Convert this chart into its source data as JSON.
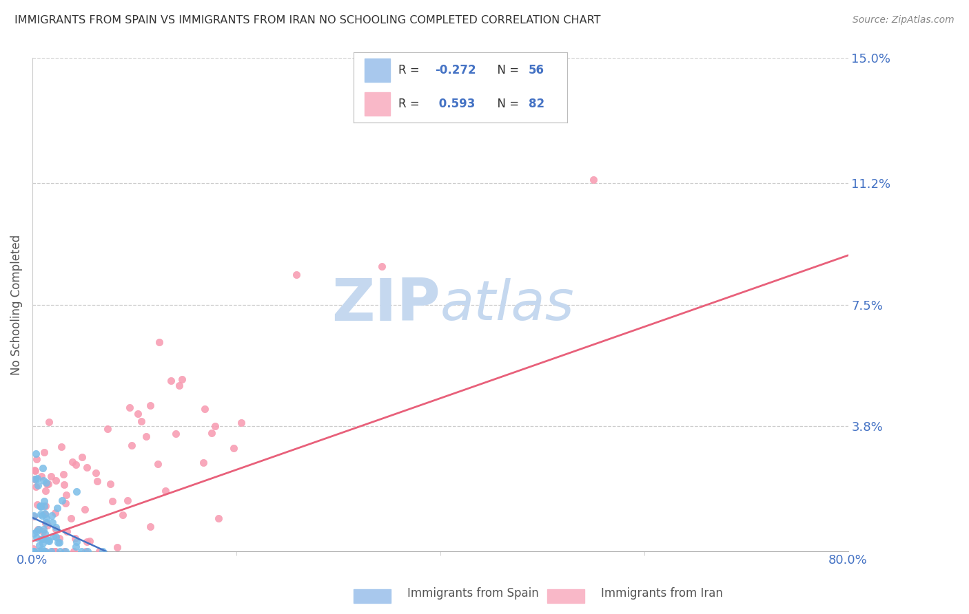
{
  "title": "IMMIGRANTS FROM SPAIN VS IMMIGRANTS FROM IRAN NO SCHOOLING COMPLETED CORRELATION CHART",
  "source": "Source: ZipAtlas.com",
  "ylabel": "No Schooling Completed",
  "xlim": [
    0.0,
    0.8
  ],
  "ylim": [
    0.0,
    0.15
  ],
  "yticks": [
    0.0,
    0.038,
    0.075,
    0.112,
    0.15
  ],
  "ytick_labels": [
    "",
    "3.8%",
    "7.5%",
    "11.2%",
    "15.0%"
  ],
  "xticks": [
    0.0,
    0.8
  ],
  "xtick_labels": [
    "0.0%",
    "80.0%"
  ],
  "series1_color": "#7bbde8",
  "series2_color": "#f799b0",
  "series1_name": "Immigrants from Spain",
  "series2_name": "Immigrants from Iran",
  "series1_R": -0.272,
  "series1_N": 56,
  "series2_R": 0.593,
  "series2_N": 82,
  "legend_color1": "#a8c8ed",
  "legend_color2": "#f9b8c8",
  "line1_color": "#4472c4",
  "line2_color": "#e8607a",
  "background_color": "#ffffff",
  "grid_color": "#cccccc",
  "title_color": "#333333",
  "axis_label_color": "#555555",
  "tick_label_color": "#4472c4",
  "watermark_zip_color": "#c5d8ef",
  "watermark_atlas_color": "#c5d8ef"
}
